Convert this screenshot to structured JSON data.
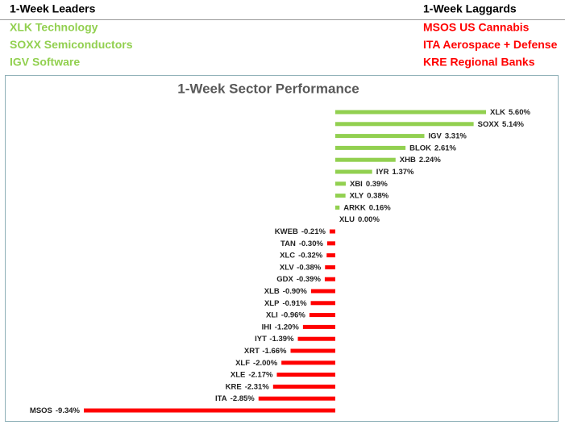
{
  "header": {
    "leaders_title": "1-Week Leaders",
    "laggards_title": "1-Week Laggards",
    "leaders": [
      "XLK Technology",
      "SOXX Semiconductors",
      "IGV Software"
    ],
    "laggards": [
      "MSOS US Cannabis",
      "ITA Aerospace + Defense",
      "KRE Regional Banks"
    ],
    "leaders_color": "#92d050",
    "laggards_color": "#ff0000"
  },
  "chart_data": {
    "type": "bar",
    "orientation": "horizontal",
    "title": "1-Week Sector Performance",
    "categories": [
      "XLK",
      "SOXX",
      "IGV",
      "BLOK",
      "XHB",
      "IYR",
      "XBI",
      "XLY",
      "ARKK",
      "XLU",
      "KWEB",
      "TAN",
      "XLC",
      "XLV",
      "GDX",
      "XLB",
      "XLP",
      "XLI",
      "IHI",
      "IYT",
      "XRT",
      "XLF",
      "XLE",
      "KRE",
      "ITA",
      "MSOS"
    ],
    "values": [
      5.6,
      5.14,
      3.31,
      2.61,
      2.24,
      1.37,
      0.39,
      0.38,
      0.16,
      0.0,
      -0.21,
      -0.3,
      -0.32,
      -0.38,
      -0.39,
      -0.9,
      -0.91,
      -0.96,
      -1.2,
      -1.39,
      -1.66,
      -2.0,
      -2.17,
      -2.31,
      -2.85,
      -9.34
    ],
    "value_labels": [
      "5.60%",
      "5.14%",
      "3.31%",
      "2.61%",
      "2.24%",
      "1.37%",
      "0.39%",
      "0.38%",
      "0.16%",
      "0.00%",
      "-0.21%",
      "-0.30%",
      "-0.32%",
      "-0.38%",
      "-0.39%",
      "-0.90%",
      "-0.91%",
      "-0.96%",
      "-1.20%",
      "-1.39%",
      "-1.66%",
      "-2.00%",
      "-2.17%",
      "-2.31%",
      "-2.85%",
      "-9.34%"
    ],
    "positive_color": "#92d050",
    "negative_color": "#ff0000"
  }
}
